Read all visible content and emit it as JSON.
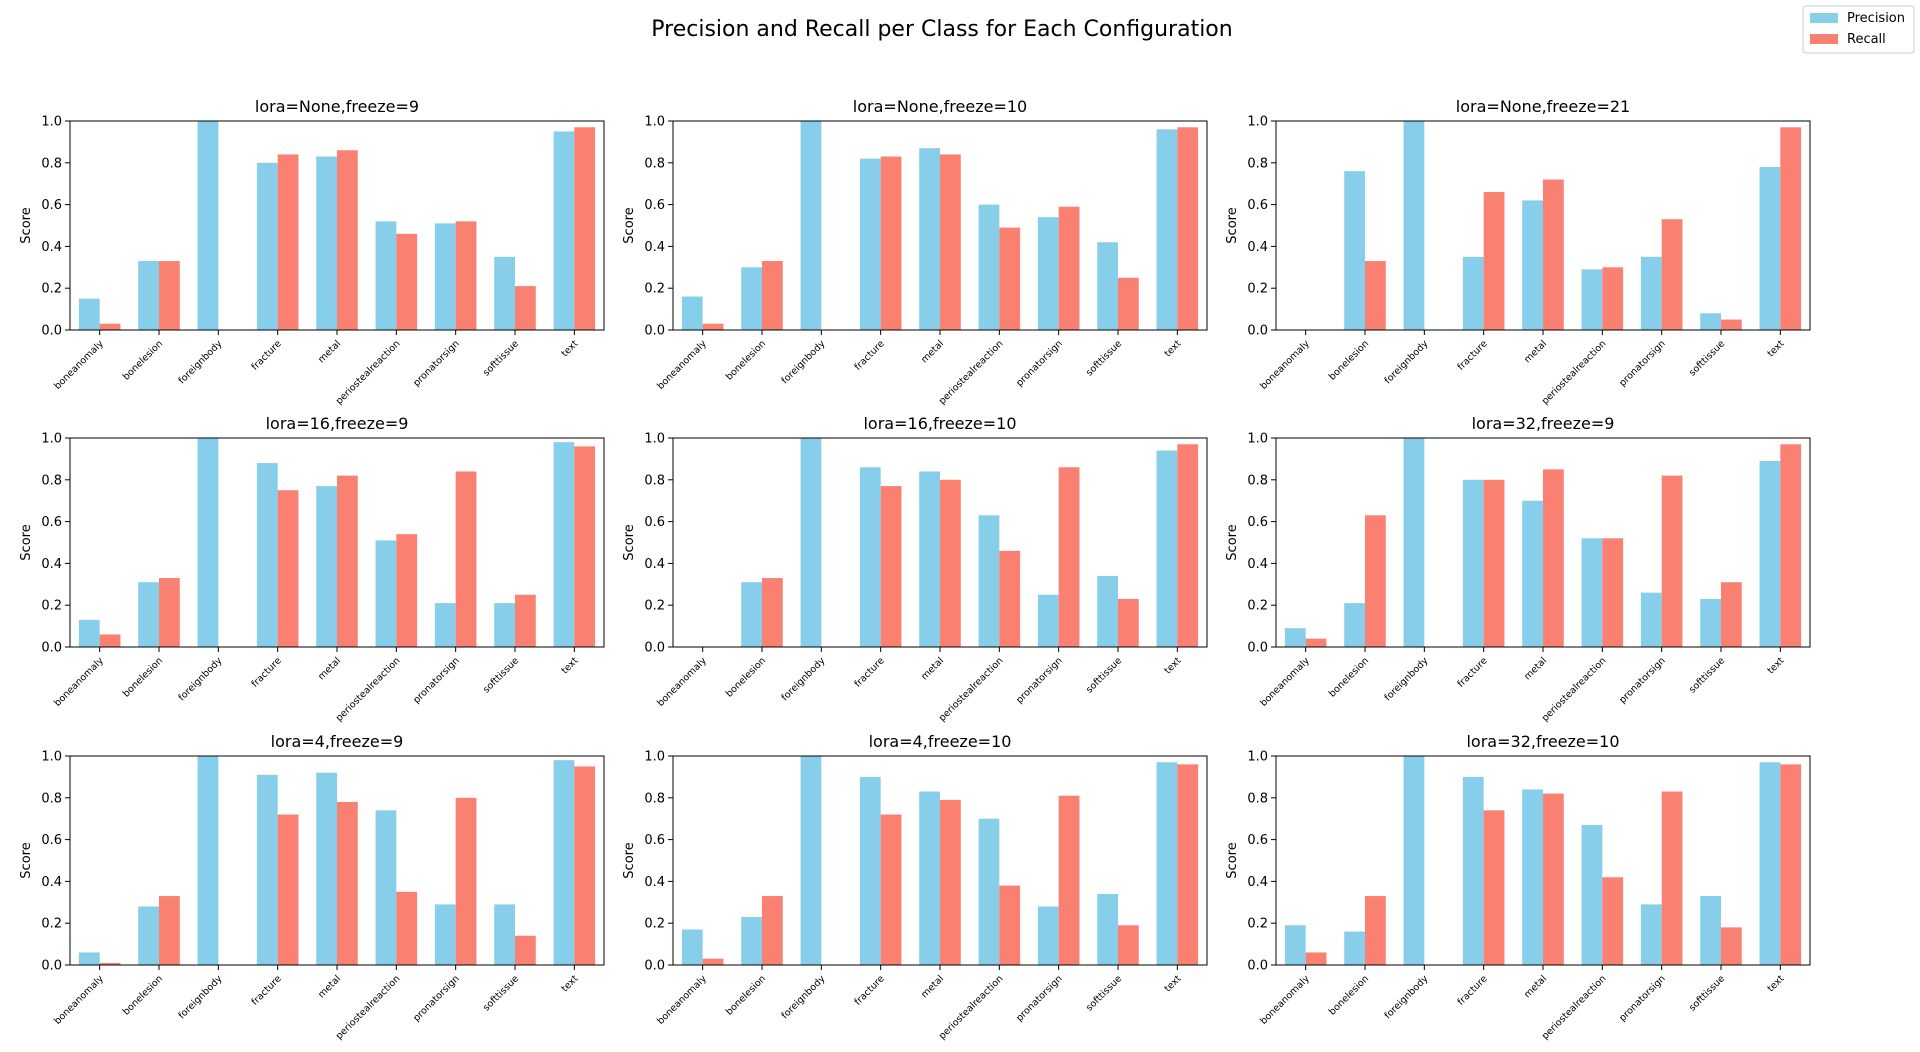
{
  "figure": {
    "title": "Precision and Recall per Class for Each Configuration",
    "legend": {
      "placement": "top-right",
      "entries": [
        "Precision",
        "Recall"
      ]
    },
    "colors": {
      "precision": "#87ceeb",
      "recall": "#fa8072",
      "axis": "#000000"
    }
  },
  "chart_data": [
    {
      "type": "bar",
      "title": "lora=None,freeze=9",
      "ylabel": "Score",
      "ylim": [
        0,
        1
      ],
      "yticks": [
        "0.0",
        "0.2",
        "0.4",
        "0.6",
        "0.8",
        "1.0"
      ],
      "categories": [
        "boneanomaly",
        "bonelesion",
        "foreignbody",
        "fracture",
        "metal",
        "periostealreaction",
        "pronatorsign",
        "softtissue",
        "text"
      ],
      "series": [
        {
          "name": "Precision",
          "values": [
            0.15,
            0.33,
            1.0,
            0.8,
            0.83,
            0.52,
            0.51,
            0.35,
            0.95
          ]
        },
        {
          "name": "Recall",
          "values": [
            0.03,
            0.33,
            0.0,
            0.84,
            0.86,
            0.46,
            0.52,
            0.21,
            0.97
          ]
        }
      ]
    },
    {
      "type": "bar",
      "title": "lora=None,freeze=10",
      "ylabel": "Score",
      "ylim": [
        0,
        1
      ],
      "yticks": [
        "0.0",
        "0.2",
        "0.4",
        "0.6",
        "0.8",
        "1.0"
      ],
      "categories": [
        "boneanomaly",
        "bonelesion",
        "foreignbody",
        "fracture",
        "metal",
        "periostealreaction",
        "pronatorsign",
        "softtissue",
        "text"
      ],
      "series": [
        {
          "name": "Precision",
          "values": [
            0.16,
            0.3,
            1.0,
            0.82,
            0.87,
            0.6,
            0.54,
            0.42,
            0.96
          ]
        },
        {
          "name": "Recall",
          "values": [
            0.03,
            0.33,
            0.0,
            0.83,
            0.84,
            0.49,
            0.59,
            0.25,
            0.97
          ]
        }
      ]
    },
    {
      "type": "bar",
      "title": "lora=None,freeze=21",
      "ylabel": "Score",
      "ylim": [
        0,
        1
      ],
      "yticks": [
        "0.0",
        "0.2",
        "0.4",
        "0.6",
        "0.8",
        "1.0"
      ],
      "categories": [
        "boneanomaly",
        "bonelesion",
        "foreignbody",
        "fracture",
        "metal",
        "periostealreaction",
        "pronatorsign",
        "softtissue",
        "text"
      ],
      "series": [
        {
          "name": "Precision",
          "values": [
            0.0,
            0.76,
            1.0,
            0.35,
            0.62,
            0.29,
            0.35,
            0.08,
            0.78
          ]
        },
        {
          "name": "Recall",
          "values": [
            0.0,
            0.33,
            0.0,
            0.66,
            0.72,
            0.3,
            0.53,
            0.05,
            0.97
          ]
        }
      ]
    },
    {
      "type": "bar",
      "title": "lora=16,freeze=9",
      "ylabel": "Score",
      "ylim": [
        0,
        1
      ],
      "yticks": [
        "0.0",
        "0.2",
        "0.4",
        "0.6",
        "0.8",
        "1.0"
      ],
      "categories": [
        "boneanomaly",
        "bonelesion",
        "foreignbody",
        "fracture",
        "metal",
        "periostealreaction",
        "pronatorsign",
        "softtissue",
        "text"
      ],
      "series": [
        {
          "name": "Precision",
          "values": [
            0.13,
            0.31,
            1.0,
            0.88,
            0.77,
            0.51,
            0.21,
            0.21,
            0.98
          ]
        },
        {
          "name": "Recall",
          "values": [
            0.06,
            0.33,
            0.0,
            0.75,
            0.82,
            0.54,
            0.84,
            0.25,
            0.96
          ]
        }
      ]
    },
    {
      "type": "bar",
      "title": "lora=16,freeze=10",
      "ylabel": "Score",
      "ylim": [
        0,
        1
      ],
      "yticks": [
        "0.0",
        "0.2",
        "0.4",
        "0.6",
        "0.8",
        "1.0"
      ],
      "categories": [
        "boneanomaly",
        "bonelesion",
        "foreignbody",
        "fracture",
        "metal",
        "periostealreaction",
        "pronatorsign",
        "softtissue",
        "text"
      ],
      "series": [
        {
          "name": "Precision",
          "values": [
            0.0,
            0.31,
            1.0,
            0.86,
            0.84,
            0.63,
            0.25,
            0.34,
            0.94
          ]
        },
        {
          "name": "Recall",
          "values": [
            0.0,
            0.33,
            0.0,
            0.77,
            0.8,
            0.46,
            0.86,
            0.23,
            0.97
          ]
        }
      ]
    },
    {
      "type": "bar",
      "title": "lora=32,freeze=9",
      "ylabel": "Score",
      "ylim": [
        0,
        1
      ],
      "yticks": [
        "0.0",
        "0.2",
        "0.4",
        "0.6",
        "0.8",
        "1.0"
      ],
      "categories": [
        "boneanomaly",
        "bonelesion",
        "foreignbody",
        "fracture",
        "metal",
        "periostealreaction",
        "pronatorsign",
        "softtissue",
        "text"
      ],
      "series": [
        {
          "name": "Precision",
          "values": [
            0.09,
            0.21,
            1.0,
            0.8,
            0.7,
            0.52,
            0.26,
            0.23,
            0.89
          ]
        },
        {
          "name": "Recall",
          "values": [
            0.04,
            0.63,
            0.0,
            0.8,
            0.85,
            0.52,
            0.82,
            0.31,
            0.97
          ]
        }
      ]
    },
    {
      "type": "bar",
      "title": "lora=4,freeze=9",
      "ylabel": "Score",
      "ylim": [
        0,
        1
      ],
      "yticks": [
        "0.0",
        "0.2",
        "0.4",
        "0.6",
        "0.8",
        "1.0"
      ],
      "categories": [
        "boneanomaly",
        "bonelesion",
        "foreignbody",
        "fracture",
        "metal",
        "periostealreaction",
        "pronatorsign",
        "softtissue",
        "text"
      ],
      "series": [
        {
          "name": "Precision",
          "values": [
            0.06,
            0.28,
            1.0,
            0.91,
            0.92,
            0.74,
            0.29,
            0.29,
            0.98
          ]
        },
        {
          "name": "Recall",
          "values": [
            0.01,
            0.33,
            0.0,
            0.72,
            0.78,
            0.35,
            0.8,
            0.14,
            0.95
          ]
        }
      ]
    },
    {
      "type": "bar",
      "title": "lora=4,freeze=10",
      "ylabel": "Score",
      "ylim": [
        0,
        1
      ],
      "yticks": [
        "0.0",
        "0.2",
        "0.4",
        "0.6",
        "0.8",
        "1.0"
      ],
      "categories": [
        "boneanomaly",
        "bonelesion",
        "foreignbody",
        "fracture",
        "metal",
        "periostealreaction",
        "pronatorsign",
        "softtissue",
        "text"
      ],
      "series": [
        {
          "name": "Precision",
          "values": [
            0.17,
            0.23,
            1.0,
            0.9,
            0.83,
            0.7,
            0.28,
            0.34,
            0.97
          ]
        },
        {
          "name": "Recall",
          "values": [
            0.03,
            0.33,
            0.0,
            0.72,
            0.79,
            0.38,
            0.81,
            0.19,
            0.96
          ]
        }
      ]
    },
    {
      "type": "bar",
      "title": "lora=32,freeze=10",
      "ylabel": "Score",
      "ylim": [
        0,
        1
      ],
      "yticks": [
        "0.0",
        "0.2",
        "0.4",
        "0.6",
        "0.8",
        "1.0"
      ],
      "categories": [
        "boneanomaly",
        "bonelesion",
        "foreignbody",
        "fracture",
        "metal",
        "periostealreaction",
        "pronatorsign",
        "softtissue",
        "text"
      ],
      "series": [
        {
          "name": "Precision",
          "values": [
            0.19,
            0.16,
            1.0,
            0.9,
            0.84,
            0.67,
            0.29,
            0.33,
            0.97
          ]
        },
        {
          "name": "Recall",
          "values": [
            0.06,
            0.33,
            0.0,
            0.74,
            0.82,
            0.42,
            0.83,
            0.18,
            0.96
          ]
        }
      ]
    }
  ]
}
